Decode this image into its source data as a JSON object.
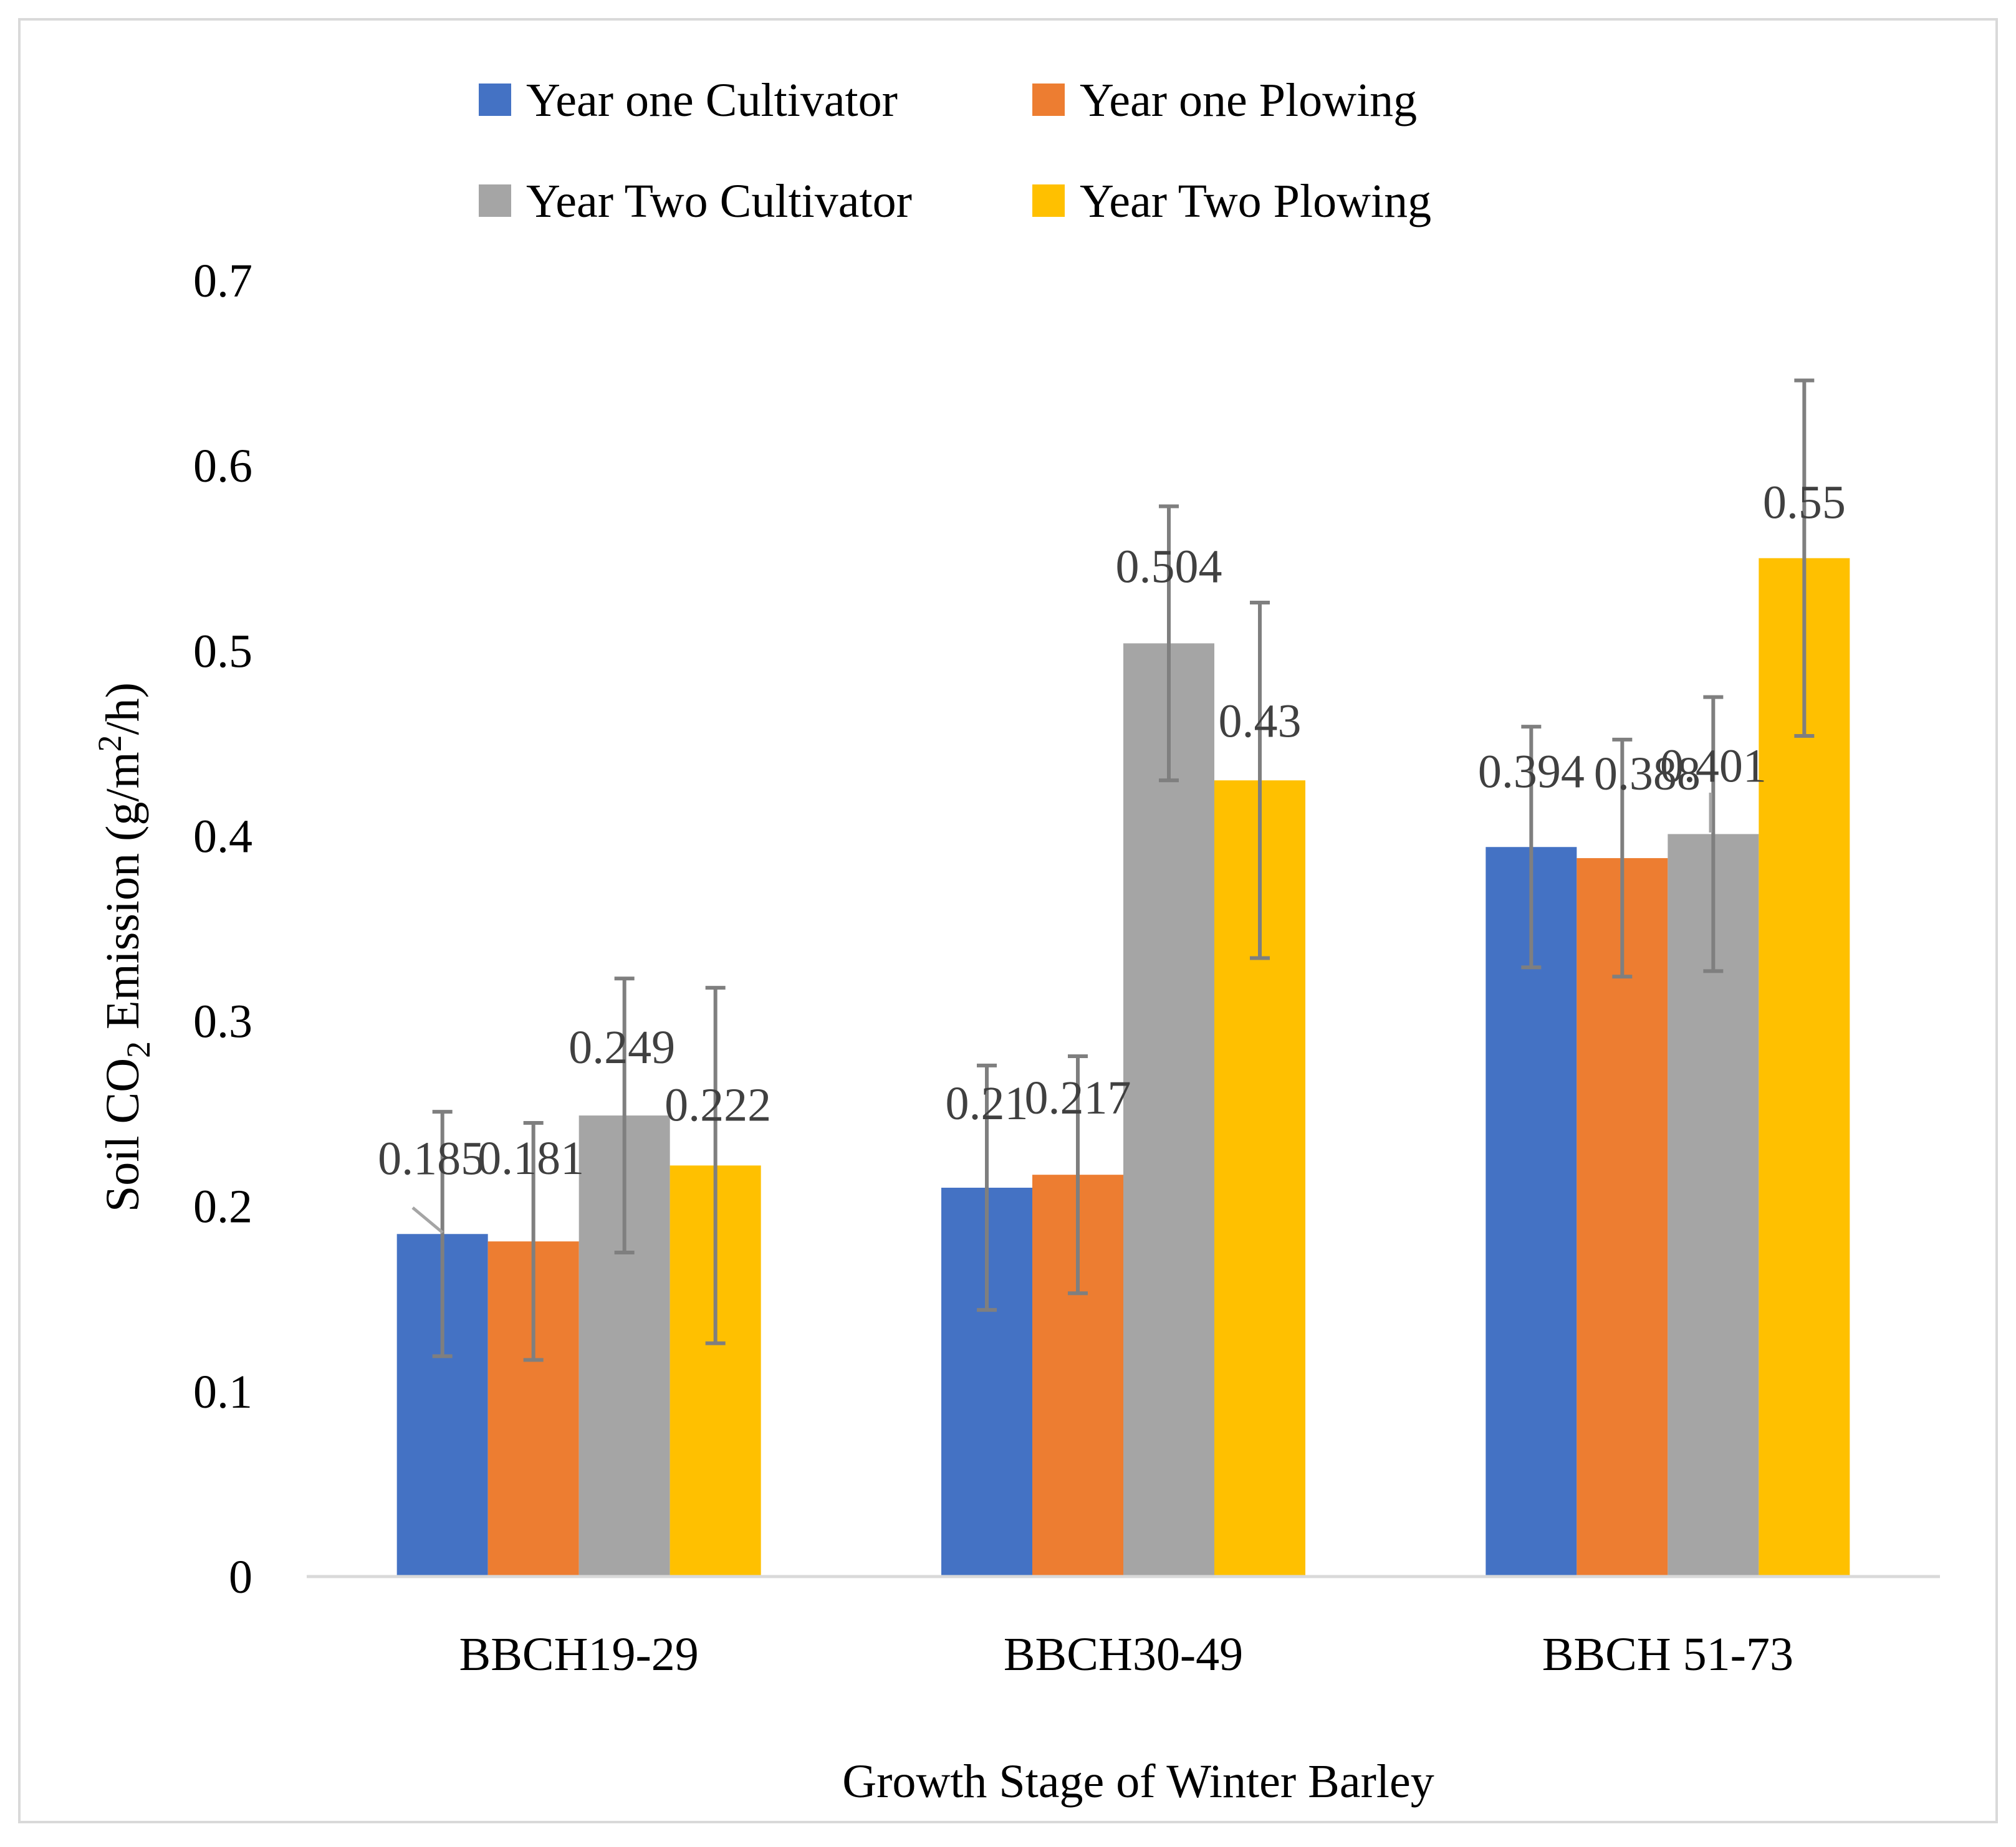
{
  "chart_data": {
    "type": "bar",
    "title": "",
    "xlabel": "Growth Stage of Winter Barley",
    "ylabel_parts": {
      "pre": "Soil CO",
      "sub": "2",
      "mid": " Emission (g/m",
      "sup": "2",
      "post": "/h)"
    },
    "ylim": [
      0,
      0.7
    ],
    "yticks": [
      0,
      0.1,
      0.2,
      0.3,
      0.4,
      0.5,
      0.6,
      0.7
    ],
    "ytick_labels": [
      "0",
      "0.1",
      "0.2",
      "0.3",
      "0.4",
      "0.5",
      "0.6",
      "0.7"
    ],
    "categories": [
      "BBCH19-29",
      "BBCH30-49",
      "BBCH 51-73"
    ],
    "legend_position": "top-center",
    "series": [
      {
        "name": "Year one Cultivator",
        "color": "#4472C4",
        "values": [
          0.185,
          0.21,
          0.394
        ],
        "labels": [
          "0.185",
          "0.21",
          "0.394"
        ],
        "error_low": [
          0.119,
          0.144,
          0.329
        ],
        "error_high": [
          0.251,
          0.276,
          0.459
        ]
      },
      {
        "name": "Year one Plowing",
        "color": "#ED7D31",
        "values": [
          0.181,
          0.217,
          0.388
        ],
        "labels": [
          "0.181",
          "0.217",
          "0.388"
        ],
        "error_low": [
          0.117,
          0.153,
          0.324
        ],
        "error_high": [
          0.245,
          0.281,
          0.452
        ]
      },
      {
        "name": "Year Two Cultivator",
        "color": "#A5A5A5",
        "values": [
          0.249,
          0.504,
          0.401
        ],
        "labels": [
          "0.249",
          "0.504",
          "0.401"
        ],
        "error_low": [
          0.175,
          0.43,
          0.327
        ],
        "error_high": [
          0.323,
          0.578,
          0.475
        ]
      },
      {
        "name": "Year Two Plowing",
        "color": "#FFC000",
        "values": [
          0.222,
          0.43,
          0.55
        ],
        "labels": [
          "0.222",
          "0.43",
          "0.55"
        ],
        "error_low": [
          0.126,
          0.334,
          0.454
        ],
        "error_high": [
          0.318,
          0.526,
          0.646
        ]
      }
    ],
    "error_bar_color": "#7F7F7F",
    "axis_color": "#D9D9D9",
    "label_color": "#404040",
    "text_color": "#000000"
  }
}
